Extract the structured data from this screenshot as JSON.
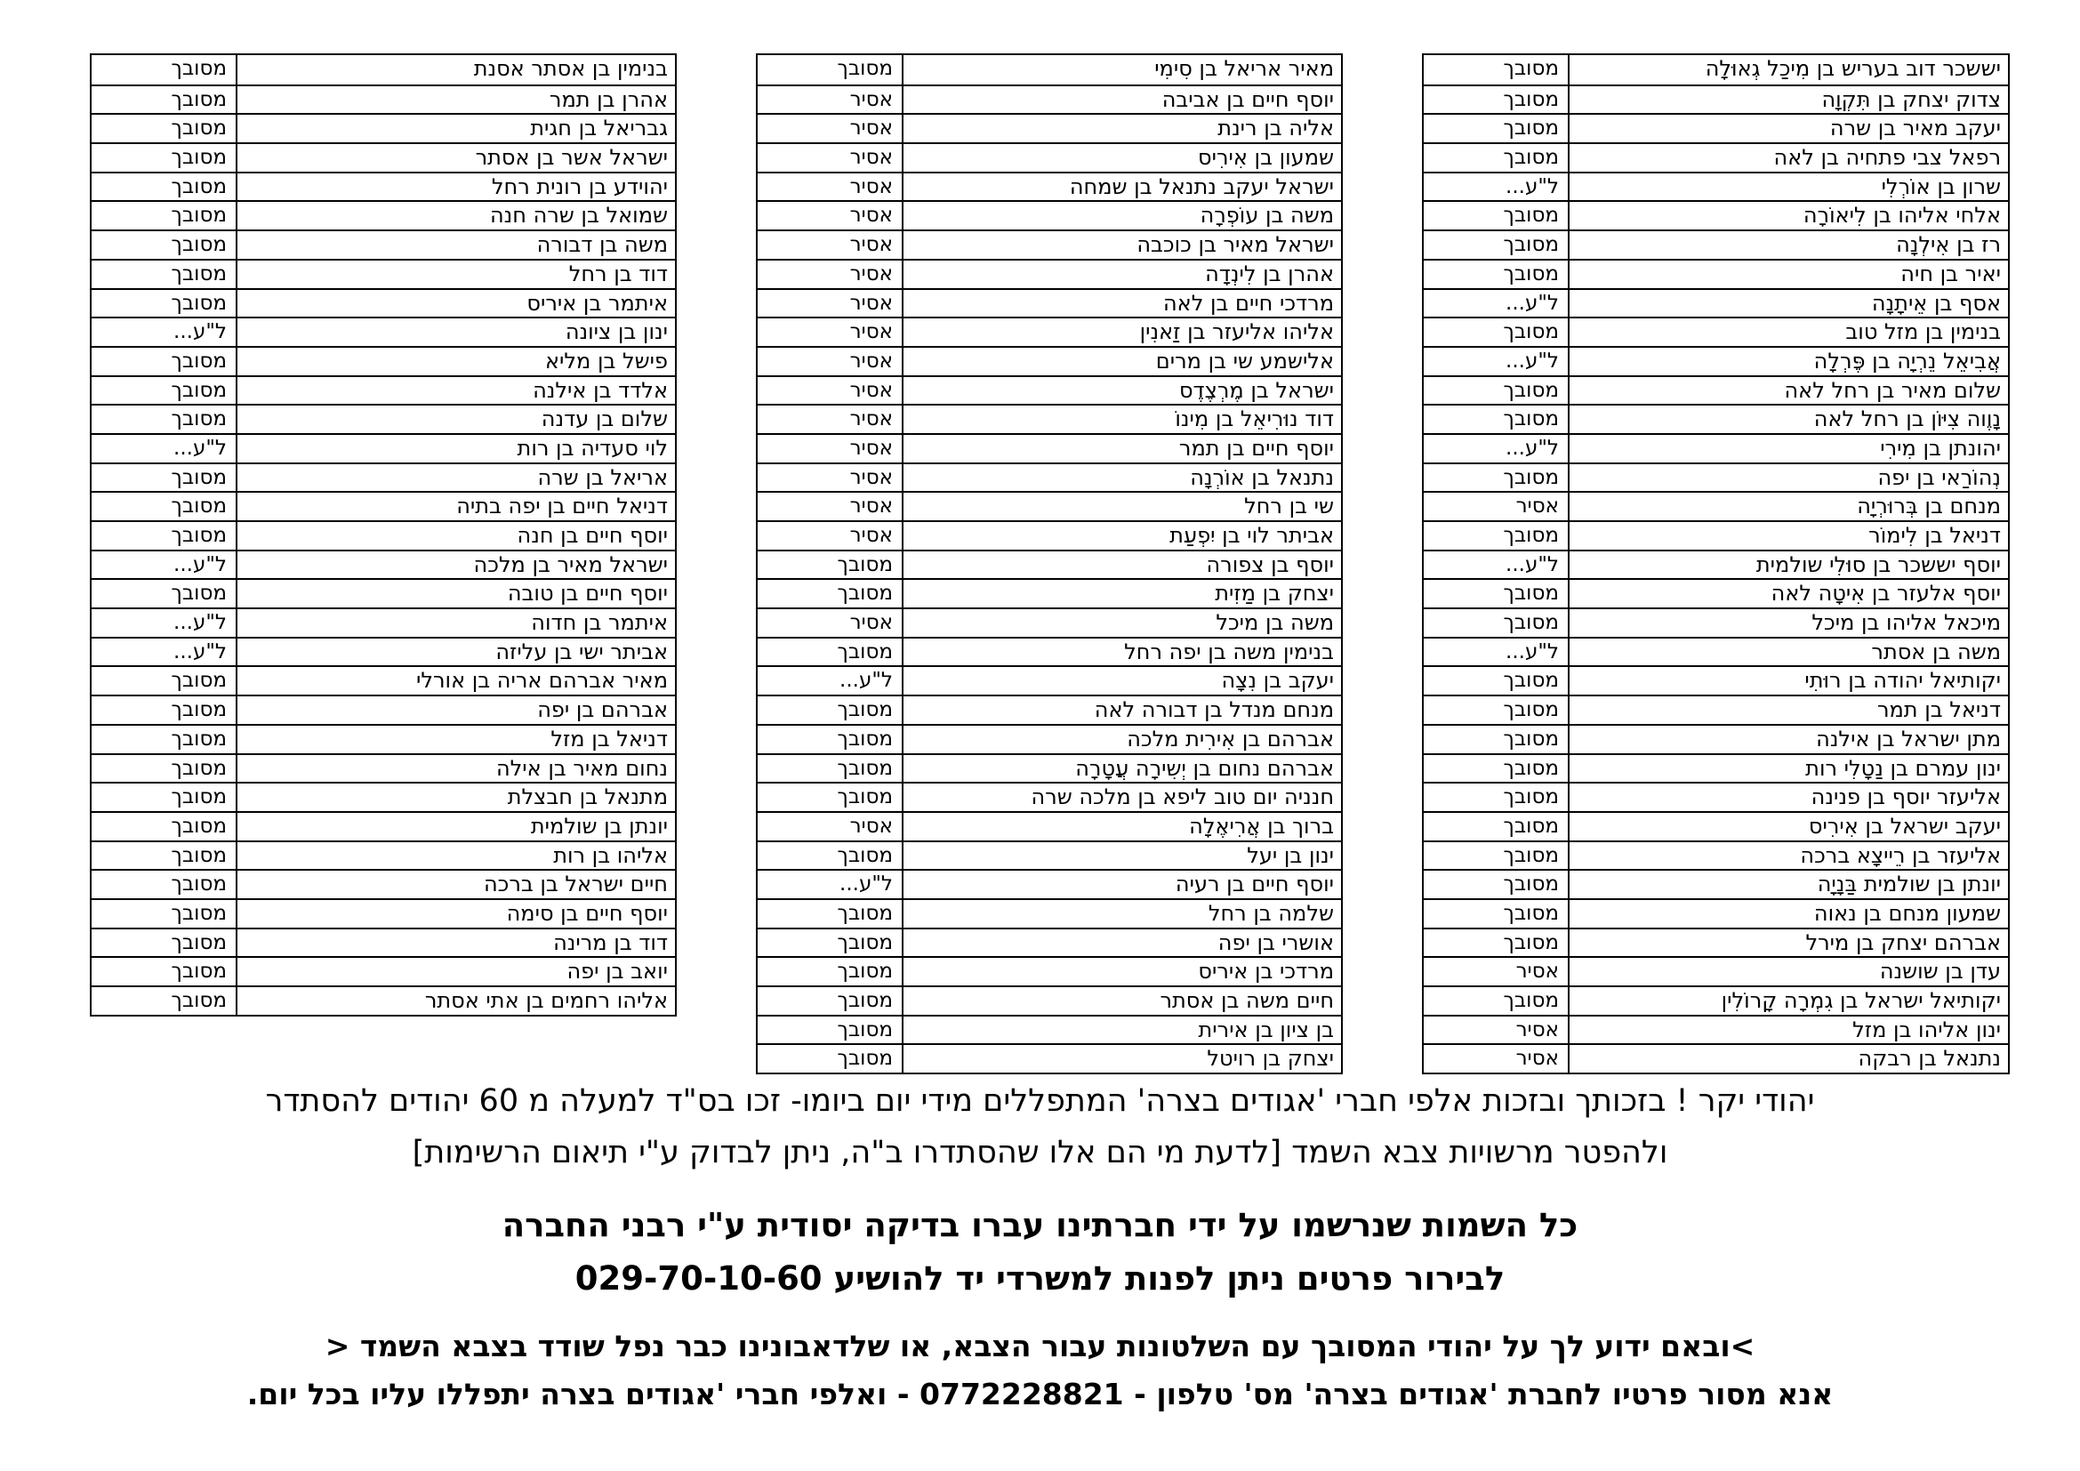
{
  "tables": [
    {
      "position": "right",
      "rows": [
        {
          "name": "יששכר דוב בעריש בן מִיכַל גְאוּלָה",
          "status": "מסובך"
        },
        {
          "name": "צדוק יצחק בן תִּקְוָה",
          "status": "מסובך"
        },
        {
          "name": "יעקב מאיר בן שרה",
          "status": "מסובך"
        },
        {
          "name": "רפאל צבי פתחיה בן לאה",
          "status": "מסובך"
        },
        {
          "name": "שרון בן אוֹרְלִי",
          "status": "ל\"ע..."
        },
        {
          "name": "אלחי אליהו בן לִיאוֹרָה",
          "status": "מסובך"
        },
        {
          "name": "רז בן אִילְנָה",
          "status": "מסובך"
        },
        {
          "name": "יאיר בן חיה",
          "status": "מסובך"
        },
        {
          "name": "אסף בן אֵיתָנָה",
          "status": "ל\"ע..."
        },
        {
          "name": "בנימין בן מזל טוב",
          "status": "מסובך"
        },
        {
          "name": "אֲבִיאֵל נֵרְיָה בן פֶּרְלָה",
          "status": "ל\"ע..."
        },
        {
          "name": "שלום מאיר בן רחל לאה",
          "status": "מסובך"
        },
        {
          "name": "נָוֶוה צִיּוֹן בן רחל לאה",
          "status": "מסובך"
        },
        {
          "name": "יהונתן בן מִירִי",
          "status": "ל\"ע..."
        },
        {
          "name": "נְהוֹרַאי בן יפה",
          "status": "מסובך"
        },
        {
          "name": "מנחם בן בְּרוּרְיָה",
          "status": "אסיר"
        },
        {
          "name": "דניאל בן לִימוֹר",
          "status": "מסובך"
        },
        {
          "name": "יוסף יששכר בן סוּלִי שולמית",
          "status": "ל\"ע..."
        },
        {
          "name": "יוסף אלעזר בן אִיטָה לאה",
          "status": "מסובך"
        },
        {
          "name": "מיכאל אליהו בן מיכל",
          "status": "מסובך"
        },
        {
          "name": "משה בן אסתר",
          "status": "ל\"ע..."
        },
        {
          "name": "יקותיאל יהודה בן רוּתִי",
          "status": "מסובך"
        },
        {
          "name": "דניאל בן תמר",
          "status": "מסובך"
        },
        {
          "name": "מתן ישראל בן אילנה",
          "status": "מסובך"
        },
        {
          "name": "ינון עמרם בן נַטָלִי רות",
          "status": "מסובך"
        },
        {
          "name": "אליעזר יוסף בן פנינה",
          "status": "מסובך"
        },
        {
          "name": "יעקב ישראל בן אִירִיס",
          "status": "מסובך"
        },
        {
          "name": "אליעזר בן רֵייצָא ברכה",
          "status": "מסובך"
        },
        {
          "name": "יונתן בן שולמית בַּנָיָה",
          "status": "מסובך"
        },
        {
          "name": "שמעון מנחם בן נאוה",
          "status": "מסובך"
        },
        {
          "name": "אברהם יצחק בן מירל",
          "status": "מסובך"
        },
        {
          "name": "עדן בן שושנה",
          "status": "אסיר"
        },
        {
          "name": "יקותיאל ישראל בן גִמְרָה קָרוֹלִין",
          "status": "מסובך"
        },
        {
          "name": "ינון אליהו בן מזל",
          "status": "אסיר"
        },
        {
          "name": "נתנאל בן רבקה",
          "status": "אסיר"
        }
      ]
    },
    {
      "position": "middle",
      "rows": [
        {
          "name": "מאיר אריאל בן סִימִי",
          "status": "מסובך"
        },
        {
          "name": "יוסף חיים בן אביבה",
          "status": "אסיר"
        },
        {
          "name": "אליה בן רינת",
          "status": "אסיר"
        },
        {
          "name": "שמעון בן אִירִיס",
          "status": "אסיר"
        },
        {
          "name": "ישראל יעקב נתנאל בן שמחה",
          "status": "אסיר"
        },
        {
          "name": "משה בן עוֹפְרָה",
          "status": "אסיר"
        },
        {
          "name": "ישראל מאיר בן כוכבה",
          "status": "אסיר"
        },
        {
          "name": "אהרן בן לִינְדָה",
          "status": "אסיר"
        },
        {
          "name": "מרדכי חיים בן לאה",
          "status": "אסיר"
        },
        {
          "name": "אליהו אליעזר בן זַאנִין",
          "status": "אסיר"
        },
        {
          "name": "אלישמע שי בן מרים",
          "status": "אסיר"
        },
        {
          "name": "ישראל בן מֶרְצֶדֶס",
          "status": "אסיר"
        },
        {
          "name": "דוד נוּרִיאֵל בן מִינוֹ",
          "status": "אסיר"
        },
        {
          "name": "יוסף חיים בן תמר",
          "status": "אסיר"
        },
        {
          "name": "נתנאל בן אוֹרְנָה",
          "status": "אסיר"
        },
        {
          "name": "שי בן רחל",
          "status": "אסיר"
        },
        {
          "name": "אביתר לוי בן יִפְעַת",
          "status": "אסיר"
        },
        {
          "name": "יוסף בן צפורה",
          "status": "מסובך"
        },
        {
          "name": "יצחק בן מַזִית",
          "status": "מסובך"
        },
        {
          "name": "משה בן מיכל",
          "status": "אסיר"
        },
        {
          "name": "בנימין משה בן יפה רחל",
          "status": "מסובך"
        },
        {
          "name": "יעקב בן נִצָה",
          "status": "ל\"ע..."
        },
        {
          "name": "מנחם מנדל בן דבורה לאה",
          "status": "מסובך"
        },
        {
          "name": "אברהם בן אִירִית מלכה",
          "status": "מסובך"
        },
        {
          "name": "אברהם נחום בן יְשִירָה עֲטָרָה",
          "status": "מסובך"
        },
        {
          "name": "חנניה יום טוב ליפא בן מלכה שרה",
          "status": "מסובך"
        },
        {
          "name": "ברוך בן אֲרִיאֶלָה",
          "status": "אסיר"
        },
        {
          "name": "ינון בן יעל",
          "status": "מסובך"
        },
        {
          "name": "יוסף חיים בן רעיה",
          "status": "ל\"ע..."
        },
        {
          "name": "שלמה בן רחל",
          "status": "מסובך"
        },
        {
          "name": "אושרי בן יפה",
          "status": "מסובך"
        },
        {
          "name": "מרדכי בן איריס",
          "status": "מסובך"
        },
        {
          "name": "חיים משה בן אסתר",
          "status": "מסובך"
        },
        {
          "name": "בן ציון בן אירית",
          "status": "מסובך"
        },
        {
          "name": "יצחק בן רויטל",
          "status": "מסובך"
        }
      ]
    },
    {
      "position": "left",
      "rows": [
        {
          "name": "בנימין בן אסתר אסנת",
          "status": "מסובך"
        },
        {
          "name": "אהרן בן תמר",
          "status": "מסובך"
        },
        {
          "name": "גבריאל בן חגית",
          "status": "מסובך"
        },
        {
          "name": "ישראל אשר בן אסתר",
          "status": "מסובך"
        },
        {
          "name": "יהוידע בן רונית רחל",
          "status": "מסובך"
        },
        {
          "name": "שמואל בן שרה חנה",
          "status": "מסובך"
        },
        {
          "name": "משה בן דבורה",
          "status": "מסובך"
        },
        {
          "name": "דוד בן רחל",
          "status": "מסובך"
        },
        {
          "name": "איתמר בן איריס",
          "status": "מסובך"
        },
        {
          "name": "ינון בן ציונה",
          "status": "ל\"ע..."
        },
        {
          "name": "פישל בן מליא",
          "status": "מסובך"
        },
        {
          "name": "אלדד בן אילנה",
          "status": "מסובך"
        },
        {
          "name": "שלום בן עדנה",
          "status": "מסובך"
        },
        {
          "name": "לוי סעדיה בן רות",
          "status": "ל\"ע..."
        },
        {
          "name": "אריאל בן שרה",
          "status": "מסובך"
        },
        {
          "name": "דניאל חיים בן יפה בתיה",
          "status": "מסובך"
        },
        {
          "name": "יוסף חיים בן חנה",
          "status": "מסובך"
        },
        {
          "name": "ישראל מאיר בן מלכה",
          "status": "ל\"ע..."
        },
        {
          "name": "יוסף חיים בן טובה",
          "status": "מסובך"
        },
        {
          "name": "איתמר בן חדוה",
          "status": "ל\"ע..."
        },
        {
          "name": "אביתר ישי בן עליזה",
          "status": "ל\"ע..."
        },
        {
          "name": "מאיר אברהם אריה בן אורלי",
          "status": "מסובך"
        },
        {
          "name": "אברהם בן יפה",
          "status": "מסובך"
        },
        {
          "name": "דניאל בן מזל",
          "status": "מסובך"
        },
        {
          "name": "נחום מאיר בן אילה",
          "status": "מסובך"
        },
        {
          "name": "מתנאל בן חבצלת",
          "status": "מסובך"
        },
        {
          "name": "יונתן בן שולמית",
          "status": "מסובך"
        },
        {
          "name": "אליהו בן רות",
          "status": "מסובך"
        },
        {
          "name": "חיים ישראל בן ברכה",
          "status": "מסובך"
        },
        {
          "name": "יוסף חיים בן סימה",
          "status": "מסובך"
        },
        {
          "name": "דוד בן מרינה",
          "status": "מסובך"
        },
        {
          "name": "יואב בן יפה",
          "status": "מסובך"
        },
        {
          "name": "אליהו רחמים בן אתי אסתר",
          "status": "מסובך"
        }
      ]
    }
  ],
  "document": {
    "footer_lines": [
      "יהודי יקר ! בזכותך ובזכות אלפי חברי 'אגודים בצרה' המתפללים מידי יום ביומו- זכו בס\"ד למעלה מ 60 יהודים להסתדר",
      "ולהפטר מרשויות צבא השמד [לדעת מי הם אלו שהסתדרו ב\"ה, ניתן לבדוק ע\"י תיאום הרשימות]",
      "כל השמות שנרשמו על ידי חברתינו עברו בדיקה יסודית ע\"י רבני החברה",
      "לבירור פרטים ניתן לפנות למשרדי יד להושיע 029-70-10-60",
      ">ובאם ידוע לך על יהודי המסובך עם השלטונות עבור הצבא, או שלדאבונינו כבר נפל שודד בצבא השמד <",
      "אנא מסור פרטיו לחברת 'אגודים בצרה' מס' טלפון - 0772228821 - ואלפי חברי 'אגודים בצרה יתפללו עליו בכל יום."
    ],
    "phone_office": "029-70-10-60",
    "phone_company": "0772228821",
    "text_color": "#000000",
    "background_color": "#ffffff"
  }
}
